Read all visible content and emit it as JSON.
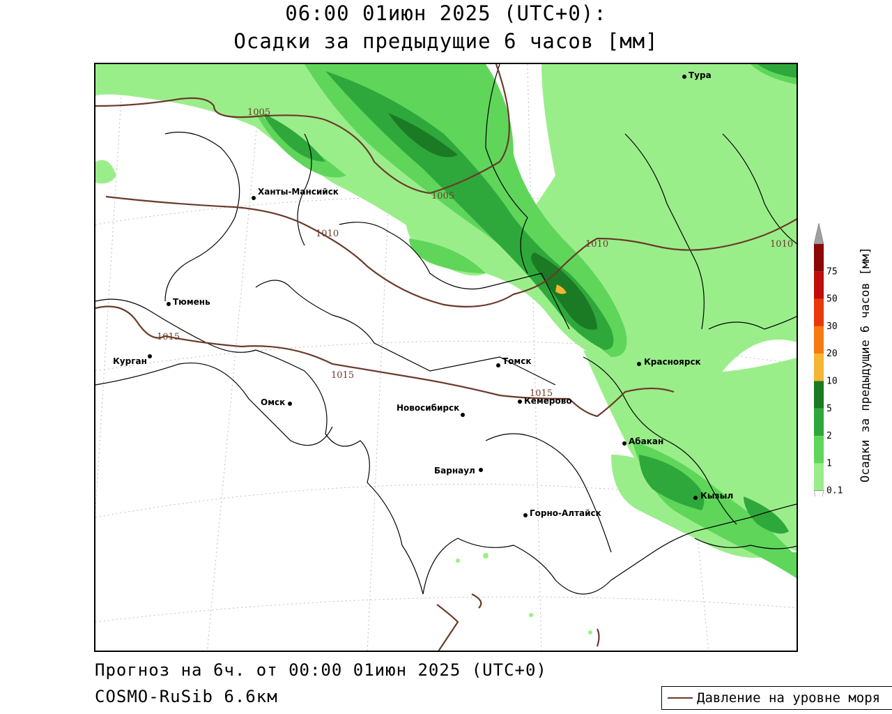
{
  "title": {
    "line1": "06:00 01июн 2025 (UTC+0):",
    "line2": "Осадки за предыдущие 6 часов [мм]"
  },
  "footer": {
    "forecast": "Прогноз на 6ч. от 00:00 01июн 2025 (UTC+0)",
    "model": "COSMO-RuSib 6.6км"
  },
  "legend": {
    "line_label": "Давление на уровне моря",
    "line_color": "#6b3a2a"
  },
  "colorbar": {
    "label": "Осадки за предыдущие 6 часов [мм]",
    "ticks": [
      "0.1",
      "1",
      "2",
      "5",
      "10",
      "20",
      "30",
      "50",
      "75"
    ],
    "colors": [
      "#9aee8a",
      "#5fd65a",
      "#2ea83a",
      "#1b7a24",
      "#f5b634",
      "#f57a10",
      "#e8380c",
      "#c00c0c",
      "#8a0808"
    ],
    "top_color": "#a0a0a0",
    "bottom_color": "#ffffff"
  },
  "cities": [
    "Тура",
    "Ханты-Мансийск",
    "Тюмень",
    "Курган",
    "Омск",
    "Томск",
    "Новосибирск",
    "Кемерово",
    "Красноярск",
    "Абакан",
    "Барнаул",
    "Горно-Алтайск",
    "Кызыл"
  ],
  "isobars": [
    "1005",
    "1005",
    "1010",
    "1010",
    "1010",
    "1015",
    "1015",
    "1015"
  ],
  "precip_colors": {
    "light": "#9aee8a",
    "medium": "#5fd65a",
    "heavy": "#2ea83a",
    "very_heavy": "#1b7a24",
    "extreme": "#f5b634"
  }
}
